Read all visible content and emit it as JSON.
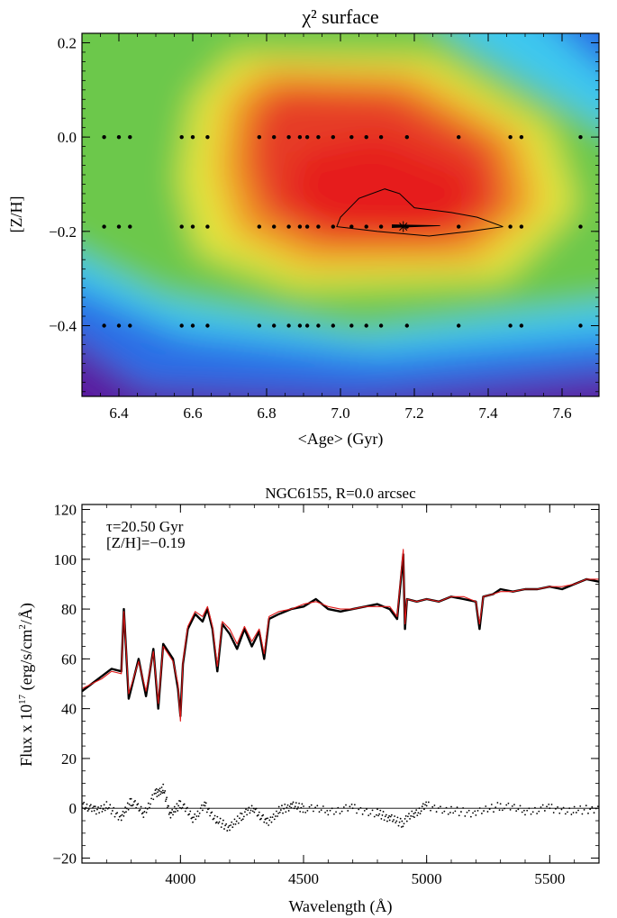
{
  "chart_data": [
    {
      "type": "heatmap",
      "title": "χ² surface",
      "xlabel": "<Age> (Gyr)",
      "ylabel": "[Z/H]",
      "xlim": [
        6.3,
        7.7
      ],
      "ylim": [
        -0.55,
        0.22
      ],
      "x_ticks": [
        6.4,
        6.6,
        6.8,
        7.0,
        7.2,
        7.4,
        7.6
      ],
      "x_tick_labels": [
        "6.4",
        "6.6",
        "6.8",
        "7.0",
        "7.2",
        "7.4",
        "7.6"
      ],
      "y_ticks": [
        0.2,
        0.0,
        -0.2,
        -0.4
      ],
      "y_tick_labels": [
        "0.2",
        "0.0",
        "−0.2",
        "−0.4"
      ],
      "colormap": [
        "#5a1aa0",
        "#2a6ee6",
        "#3cc8f0",
        "#6cc84c",
        "#e6e63c",
        "#f09c28",
        "#e63c28",
        "#e61e1e"
      ],
      "minimum": {
        "age": 7.17,
        "zh": -0.19
      },
      "grid_ages": [
        6.36,
        6.4,
        6.43,
        6.57,
        6.6,
        6.64,
        6.78,
        6.82,
        6.86,
        6.89,
        6.91,
        6.94,
        6.98,
        7.03,
        7.07,
        7.11,
        7.18,
        7.32,
        7.46,
        7.49,
        7.65
      ],
      "grid_metallicities": [
        0.0,
        -0.19,
        -0.4
      ],
      "contour": [
        [
          7.0,
          -0.17
        ],
        [
          7.05,
          -0.13
        ],
        [
          7.12,
          -0.11
        ],
        [
          7.16,
          -0.12
        ],
        [
          7.2,
          -0.15
        ],
        [
          7.3,
          -0.16
        ],
        [
          7.37,
          -0.17
        ],
        [
          7.44,
          -0.19
        ],
        [
          7.35,
          -0.2
        ],
        [
          7.24,
          -0.21
        ],
        [
          7.1,
          -0.2
        ],
        [
          6.99,
          -0.19
        ]
      ],
      "inner_contour": [
        [
          7.14,
          -0.186
        ],
        [
          7.27,
          -0.188
        ],
        [
          7.14,
          -0.192
        ]
      ]
    },
    {
      "type": "line",
      "title": "NGC6155, R=0.0 arcsec",
      "xlabel": "Wavelength (Å)",
      "ylabel_main": "Flux x 10",
      "ylabel_exp": "17",
      "ylabel_unit": " (erg/s/cm",
      "ylabel_unit_exp": "2",
      "ylabel_end": "/Å)",
      "xlim": [
        3600,
        5700
      ],
      "ylim": [
        -22,
        122
      ],
      "x_ticks": [
        4000,
        4500,
        5000,
        5500
      ],
      "x_tick_labels": [
        "4000",
        "4500",
        "5000",
        "5500"
      ],
      "y_ticks": [
        -20,
        0,
        20,
        40,
        60,
        80,
        100,
        120
      ],
      "y_tick_labels": [
        "−20",
        "0",
        "20",
        "40",
        "60",
        "80",
        "100",
        "120"
      ],
      "annotations": [
        "τ=20.50 Gyr",
        "[Z/H]=−0.19"
      ],
      "series": [
        {
          "color": "#000000",
          "x": [
            3600,
            3640,
            3680,
            3720,
            3760,
            3770,
            3790,
            3830,
            3860,
            3890,
            3910,
            3930,
            3970,
            3990,
            4000,
            4010,
            4030,
            4060,
            4090,
            4110,
            4130,
            4150,
            4170,
            4200,
            4230,
            4260,
            4290,
            4320,
            4340,
            4360,
            4400,
            4450,
            4500,
            4550,
            4600,
            4650,
            4700,
            4750,
            4800,
            4850,
            4880,
            4905,
            4912,
            4920,
            4960,
            5000,
            5050,
            5100,
            5150,
            5200,
            5215,
            5230,
            5270,
            5300,
            5350,
            5400,
            5450,
            5500,
            5550,
            5600,
            5650,
            5700
          ],
          "y": [
            47,
            50,
            53,
            56,
            55,
            80,
            44,
            60,
            45,
            64,
            40,
            66,
            60,
            48,
            37,
            58,
            72,
            78,
            75,
            80,
            72,
            55,
            74,
            70,
            64,
            72,
            65,
            71,
            60,
            76,
            78,
            80,
            81,
            84,
            80,
            79,
            80,
            81,
            82,
            80,
            76,
            102,
            72,
            84,
            83,
            84,
            83,
            85,
            84,
            83,
            72,
            85,
            86,
            88,
            87,
            88,
            88,
            89,
            88,
            90,
            92,
            91
          ]
        },
        {
          "color": "#e01818",
          "x": [
            3600,
            3640,
            3680,
            3720,
            3760,
            3770,
            3790,
            3830,
            3860,
            3890,
            3910,
            3930,
            3970,
            3990,
            4000,
            4010,
            4030,
            4060,
            4090,
            4110,
            4130,
            4150,
            4170,
            4200,
            4230,
            4260,
            4290,
            4320,
            4340,
            4360,
            4400,
            4450,
            4500,
            4550,
            4600,
            4650,
            4700,
            4750,
            4800,
            4850,
            4880,
            4905,
            4912,
            4920,
            4960,
            5000,
            5050,
            5100,
            5150,
            5200,
            5215,
            5230,
            5270,
            5300,
            5350,
            5400,
            5450,
            5500,
            5550,
            5600,
            5650,
            5700
          ],
          "y": [
            48,
            50,
            52,
            55,
            54,
            79,
            46,
            59,
            47,
            63,
            42,
            65,
            59,
            50,
            35,
            59,
            73,
            79,
            77,
            81,
            73,
            57,
            75,
            72,
            66,
            73,
            67,
            72,
            62,
            77,
            79,
            80,
            82,
            83,
            81,
            80,
            80,
            81,
            81,
            81,
            77,
            104,
            74,
            84,
            83,
            84,
            83,
            85,
            85,
            83,
            74,
            85,
            86,
            87,
            87,
            88,
            88,
            89,
            89,
            90,
            92,
            92
          ]
        },
        {
          "color": "#000000",
          "style": "dotted",
          "x": [
            3600,
            3650,
            3700,
            3760,
            3800,
            3850,
            3900,
            3930,
            3960,
            4000,
            4050,
            4100,
            4150,
            4200,
            4250,
            4300,
            4350,
            4400,
            4450,
            4500,
            4600,
            4700,
            4800,
            4850,
            4900,
            4950,
            5000,
            5100,
            5200,
            5300,
            5400,
            5500,
            5600,
            5700
          ],
          "y": [
            2,
            -1,
            1,
            -4,
            3,
            -2,
            6,
            8,
            -3,
            2,
            -4,
            1,
            -5,
            -8,
            -3,
            0,
            -6,
            -1,
            1,
            0,
            -1,
            0,
            -2,
            -4,
            -6,
            -2,
            1,
            -1,
            -2,
            1,
            -1,
            0,
            -1,
            0
          ]
        }
      ],
      "zero_line": 0
    }
  ]
}
